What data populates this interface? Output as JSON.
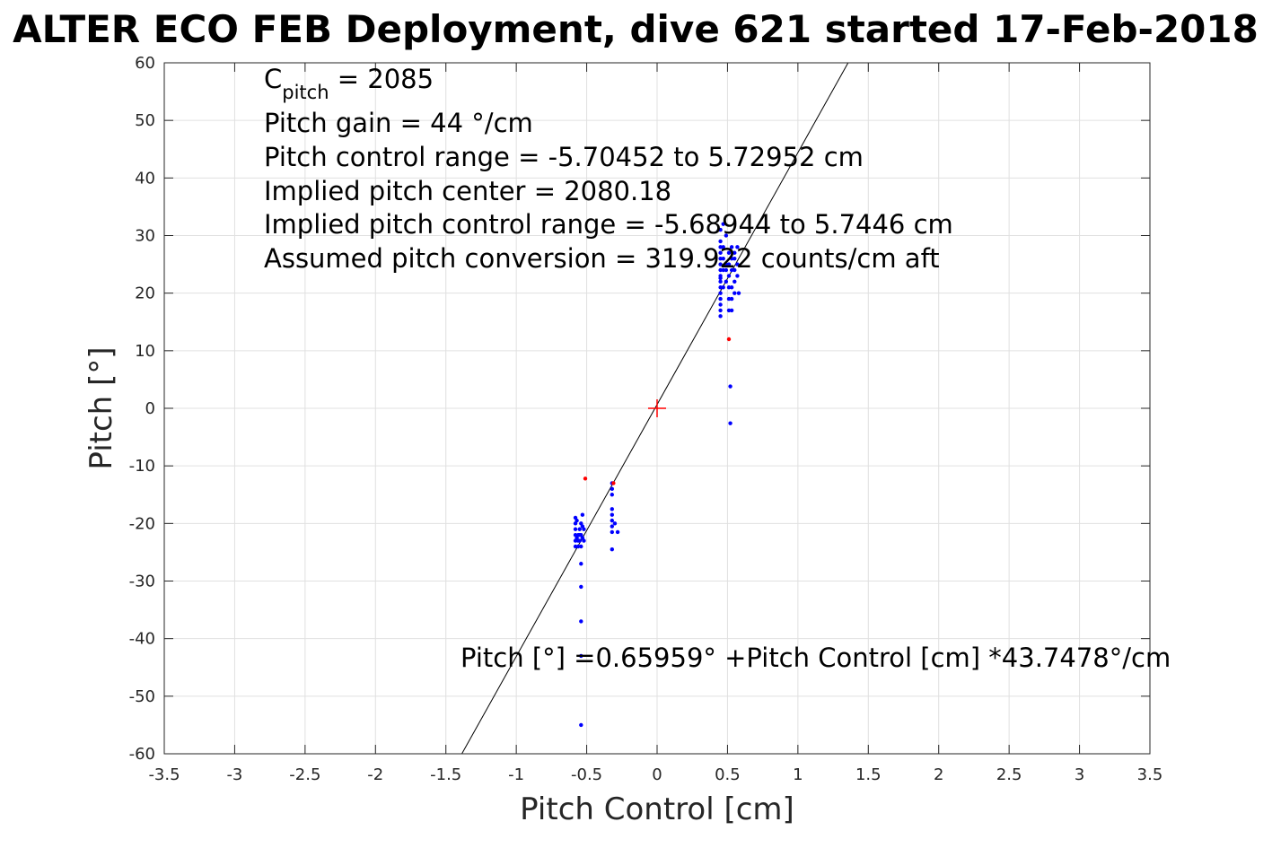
{
  "chart_data": {
    "type": "scatter",
    "title": "ALTER ECO FEB Deployment, dive 621 started 17-Feb-2018",
    "xlabel": "Pitch Control [cm]",
    "ylabel": "Pitch [°]",
    "xlim": [
      -3.5,
      3.5
    ],
    "ylim": [
      -60,
      60
    ],
    "grid": true,
    "xticks": [
      "-3.5",
      "-3",
      "-2.5",
      "-2",
      "-1.5",
      "-1",
      "-0.5",
      "0",
      "0.5",
      "1",
      "1.5",
      "2",
      "2.5",
      "3",
      "3.5"
    ],
    "yticks": [
      "60",
      "50",
      "40",
      "30",
      "20",
      "10",
      "0",
      "-10",
      "-20",
      "-30",
      "-40",
      "-50",
      "-60"
    ],
    "annotations": {
      "cpitch_label_main": "C",
      "cpitch_label_sub": "pitch",
      "cpitch_value": " = 2085",
      "gain": "Pitch gain = 44 °/cm",
      "range": "Pitch control range = -5.70452 to 5.72952 cm",
      "center": "Implied pitch center = 2080.18",
      "implied_range": "Implied pitch control range = -5.68944 to 5.7446 cm",
      "conversion": "Assumed pitch conversion = 319.922 counts/cm aft",
      "fit_equation": "Pitch [°] =0.65959° +Pitch Control [cm] *43.7478°/cm"
    },
    "fit": {
      "intercept": 0.65959,
      "slope": 43.7478,
      "color": "#000000"
    },
    "center_marker": {
      "x": 0,
      "y": 0,
      "color": "#ff0000"
    },
    "series": [
      {
        "color": "#0000ff",
        "points": [
          [
            0.45,
            16
          ],
          [
            0.45,
            17
          ],
          [
            0.45,
            18
          ],
          [
            0.45,
            19
          ],
          [
            0.45,
            20
          ],
          [
            0.45,
            21
          ],
          [
            0.45,
            22
          ],
          [
            0.45,
            22.6
          ],
          [
            0.45,
            23
          ],
          [
            0.45,
            24
          ],
          [
            0.45,
            25
          ],
          [
            0.45,
            26
          ],
          [
            0.45,
            27
          ],
          [
            0.45,
            28
          ],
          [
            0.45,
            29
          ],
          [
            0.45,
            31
          ],
          [
            0.47,
            21
          ],
          [
            0.47,
            24
          ],
          [
            0.47,
            26
          ],
          [
            0.47,
            28
          ],
          [
            0.47,
            32
          ],
          [
            0.49,
            22
          ],
          [
            0.49,
            24
          ],
          [
            0.49,
            25
          ],
          [
            0.49,
            30
          ],
          [
            0.51,
            17
          ],
          [
            0.51,
            19
          ],
          [
            0.51,
            21
          ],
          [
            0.51,
            23
          ],
          [
            0.51,
            25
          ],
          [
            0.51,
            27
          ],
          [
            0.53,
            17
          ],
          [
            0.53,
            19
          ],
          [
            0.53,
            21
          ],
          [
            0.53,
            24
          ],
          [
            0.53,
            26
          ],
          [
            0.53,
            28
          ],
          [
            0.55,
            20
          ],
          [
            0.55,
            22
          ],
          [
            0.55,
            24
          ],
          [
            0.55,
            26
          ],
          [
            0.55,
            27
          ],
          [
            0.57,
            23
          ],
          [
            0.57,
            25
          ],
          [
            0.57,
            28
          ],
          [
            0.58,
            20
          ],
          [
            0.52,
            3.8
          ],
          [
            0.52,
            -2.6
          ],
          [
            -0.58,
            -19
          ],
          [
            -0.58,
            -20
          ],
          [
            -0.58,
            -21
          ],
          [
            -0.58,
            -22
          ],
          [
            -0.58,
            -23
          ],
          [
            -0.58,
            -24
          ],
          [
            -0.57,
            -19.5
          ],
          [
            -0.57,
            -22.5
          ],
          [
            -0.56,
            -22
          ],
          [
            -0.56,
            -23
          ],
          [
            -0.56,
            -24
          ],
          [
            -0.55,
            -21
          ],
          [
            -0.55,
            -22
          ],
          [
            -0.55,
            -23
          ],
          [
            -0.54,
            -20
          ],
          [
            -0.54,
            -22
          ],
          [
            -0.54,
            -24
          ],
          [
            -0.53,
            -18.5
          ],
          [
            -0.53,
            -20.5
          ],
          [
            -0.53,
            -22.5
          ],
          [
            -0.52,
            -21
          ],
          [
            -0.52,
            -23
          ],
          [
            -0.54,
            -27
          ],
          [
            -0.54,
            -31
          ],
          [
            -0.54,
            -37
          ],
          [
            -0.54,
            -43
          ],
          [
            -0.54,
            -55
          ],
          [
            -0.32,
            -13
          ],
          [
            -0.32,
            -14
          ],
          [
            -0.32,
            -15
          ],
          [
            -0.32,
            -17.5
          ],
          [
            -0.32,
            -18.5
          ],
          [
            -0.32,
            -19.5
          ],
          [
            -0.32,
            -20.5
          ],
          [
            -0.32,
            -21.5
          ],
          [
            -0.32,
            -24.5
          ],
          [
            -0.3,
            -20
          ],
          [
            -0.28,
            -21.5
          ]
        ]
      },
      {
        "color": "#ff0000",
        "points": [
          [
            0.51,
            12
          ],
          [
            -0.51,
            -12.2
          ],
          [
            -0.31,
            -13
          ]
        ]
      }
    ]
  }
}
